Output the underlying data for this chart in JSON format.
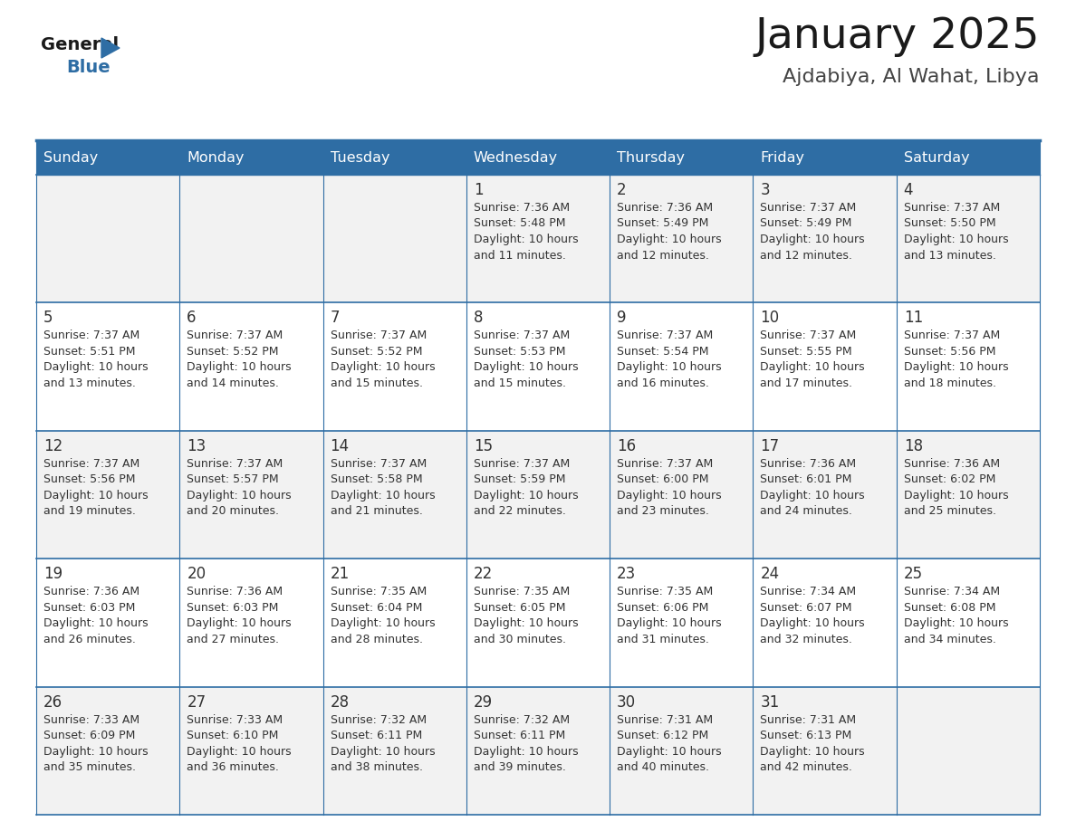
{
  "title": "January 2025",
  "subtitle": "Ajdabiya, Al Wahat, Libya",
  "header_bg": "#2E6DA4",
  "header_text": "#FFFFFF",
  "cell_bg_odd": "#F2F2F2",
  "cell_bg_even": "#FFFFFF",
  "border_color": "#2E6DA4",
  "day_names": [
    "Sunday",
    "Monday",
    "Tuesday",
    "Wednesday",
    "Thursday",
    "Friday",
    "Saturday"
  ],
  "title_color": "#1a1a1a",
  "subtitle_color": "#444444",
  "day_num_color": "#333333",
  "cell_text_color": "#333333",
  "calendar": [
    [
      null,
      null,
      null,
      {
        "day": 1,
        "rise": "7:36 AM",
        "set": "5:48 PM",
        "light": "10 hours and 11 minutes"
      },
      {
        "day": 2,
        "rise": "7:36 AM",
        "set": "5:49 PM",
        "light": "10 hours and 12 minutes"
      },
      {
        "day": 3,
        "rise": "7:37 AM",
        "set": "5:49 PM",
        "light": "10 hours and 12 minutes"
      },
      {
        "day": 4,
        "rise": "7:37 AM",
        "set": "5:50 PM",
        "light": "10 hours and 13 minutes"
      }
    ],
    [
      {
        "day": 5,
        "rise": "7:37 AM",
        "set": "5:51 PM",
        "light": "10 hours and 13 minutes"
      },
      {
        "day": 6,
        "rise": "7:37 AM",
        "set": "5:52 PM",
        "light": "10 hours and 14 minutes"
      },
      {
        "day": 7,
        "rise": "7:37 AM",
        "set": "5:52 PM",
        "light": "10 hours and 15 minutes"
      },
      {
        "day": 8,
        "rise": "7:37 AM",
        "set": "5:53 PM",
        "light": "10 hours and 15 minutes"
      },
      {
        "day": 9,
        "rise": "7:37 AM",
        "set": "5:54 PM",
        "light": "10 hours and 16 minutes"
      },
      {
        "day": 10,
        "rise": "7:37 AM",
        "set": "5:55 PM",
        "light": "10 hours and 17 minutes"
      },
      {
        "day": 11,
        "rise": "7:37 AM",
        "set": "5:56 PM",
        "light": "10 hours and 18 minutes"
      }
    ],
    [
      {
        "day": 12,
        "rise": "7:37 AM",
        "set": "5:56 PM",
        "light": "10 hours and 19 minutes"
      },
      {
        "day": 13,
        "rise": "7:37 AM",
        "set": "5:57 PM",
        "light": "10 hours and 20 minutes"
      },
      {
        "day": 14,
        "rise": "7:37 AM",
        "set": "5:58 PM",
        "light": "10 hours and 21 minutes"
      },
      {
        "day": 15,
        "rise": "7:37 AM",
        "set": "5:59 PM",
        "light": "10 hours and 22 minutes"
      },
      {
        "day": 16,
        "rise": "7:37 AM",
        "set": "6:00 PM",
        "light": "10 hours and 23 minutes"
      },
      {
        "day": 17,
        "rise": "7:36 AM",
        "set": "6:01 PM",
        "light": "10 hours and 24 minutes"
      },
      {
        "day": 18,
        "rise": "7:36 AM",
        "set": "6:02 PM",
        "light": "10 hours and 25 minutes"
      }
    ],
    [
      {
        "day": 19,
        "rise": "7:36 AM",
        "set": "6:03 PM",
        "light": "10 hours and 26 minutes"
      },
      {
        "day": 20,
        "rise": "7:36 AM",
        "set": "6:03 PM",
        "light": "10 hours and 27 minutes"
      },
      {
        "day": 21,
        "rise": "7:35 AM",
        "set": "6:04 PM",
        "light": "10 hours and 28 minutes"
      },
      {
        "day": 22,
        "rise": "7:35 AM",
        "set": "6:05 PM",
        "light": "10 hours and 30 minutes"
      },
      {
        "day": 23,
        "rise": "7:35 AM",
        "set": "6:06 PM",
        "light": "10 hours and 31 minutes"
      },
      {
        "day": 24,
        "rise": "7:34 AM",
        "set": "6:07 PM",
        "light": "10 hours and 32 minutes"
      },
      {
        "day": 25,
        "rise": "7:34 AM",
        "set": "6:08 PM",
        "light": "10 hours and 34 minutes"
      }
    ],
    [
      {
        "day": 26,
        "rise": "7:33 AM",
        "set": "6:09 PM",
        "light": "10 hours and 35 minutes"
      },
      {
        "day": 27,
        "rise": "7:33 AM",
        "set": "6:10 PM",
        "light": "10 hours and 36 minutes"
      },
      {
        "day": 28,
        "rise": "7:32 AM",
        "set": "6:11 PM",
        "light": "10 hours and 38 minutes"
      },
      {
        "day": 29,
        "rise": "7:32 AM",
        "set": "6:11 PM",
        "light": "10 hours and 39 minutes"
      },
      {
        "day": 30,
        "rise": "7:31 AM",
        "set": "6:12 PM",
        "light": "10 hours and 40 minutes"
      },
      {
        "day": 31,
        "rise": "7:31 AM",
        "set": "6:13 PM",
        "light": "10 hours and 42 minutes"
      },
      null
    ]
  ]
}
